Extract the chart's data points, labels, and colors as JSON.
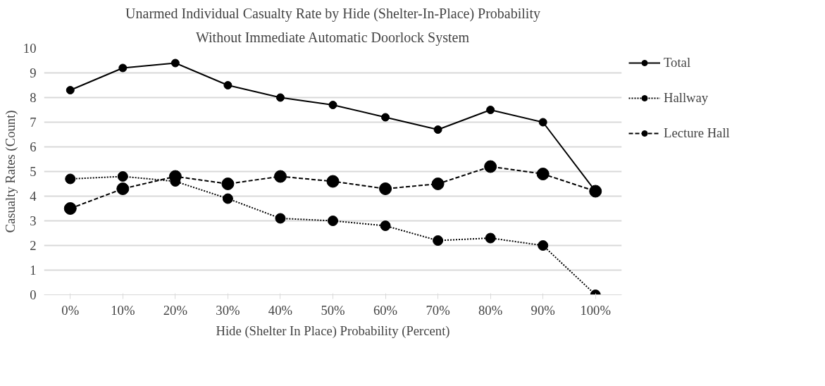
{
  "chart_data": {
    "type": "line",
    "title": "Unarmed Individual Casualty Rate by Hide (Shelter-In-Place) Probability",
    "subtitle": "Without Immediate Automatic Doorlock System",
    "xlabel": "Hide (Shelter In Place) Probability (Percent)",
    "ylabel": "Casualty Rates (Count)",
    "categories": [
      "0%",
      "10%",
      "20%",
      "30%",
      "40%",
      "50%",
      "60%",
      "70%",
      "80%",
      "90%",
      "100%"
    ],
    "series": [
      {
        "name": "Total",
        "color": "#000000",
        "line_style": "solid",
        "values": [
          8.3,
          9.2,
          9.4,
          8.5,
          8.0,
          7.7,
          7.2,
          6.7,
          7.5,
          7.0,
          4.2
        ]
      },
      {
        "name": "Hallway",
        "color": "#000000",
        "line_style": "dotted",
        "values": [
          4.7,
          4.8,
          4.6,
          3.9,
          3.1,
          3.0,
          2.8,
          2.2,
          2.3,
          2.0,
          0
        ]
      },
      {
        "name": "Lecture Hall",
        "color": "#000000",
        "line_style": "dashed",
        "values": [
          3.5,
          4.3,
          4.8,
          4.5,
          4.8,
          4.6,
          4.3,
          4.5,
          5.2,
          4.9,
          4.2
        ]
      }
    ],
    "ylim": [
      0,
      10
    ],
    "yticks": [
      0,
      1,
      2,
      3,
      4,
      5,
      6,
      7,
      8,
      9,
      10
    ],
    "grid": "y",
    "legend": "right",
    "marker": "circle"
  }
}
